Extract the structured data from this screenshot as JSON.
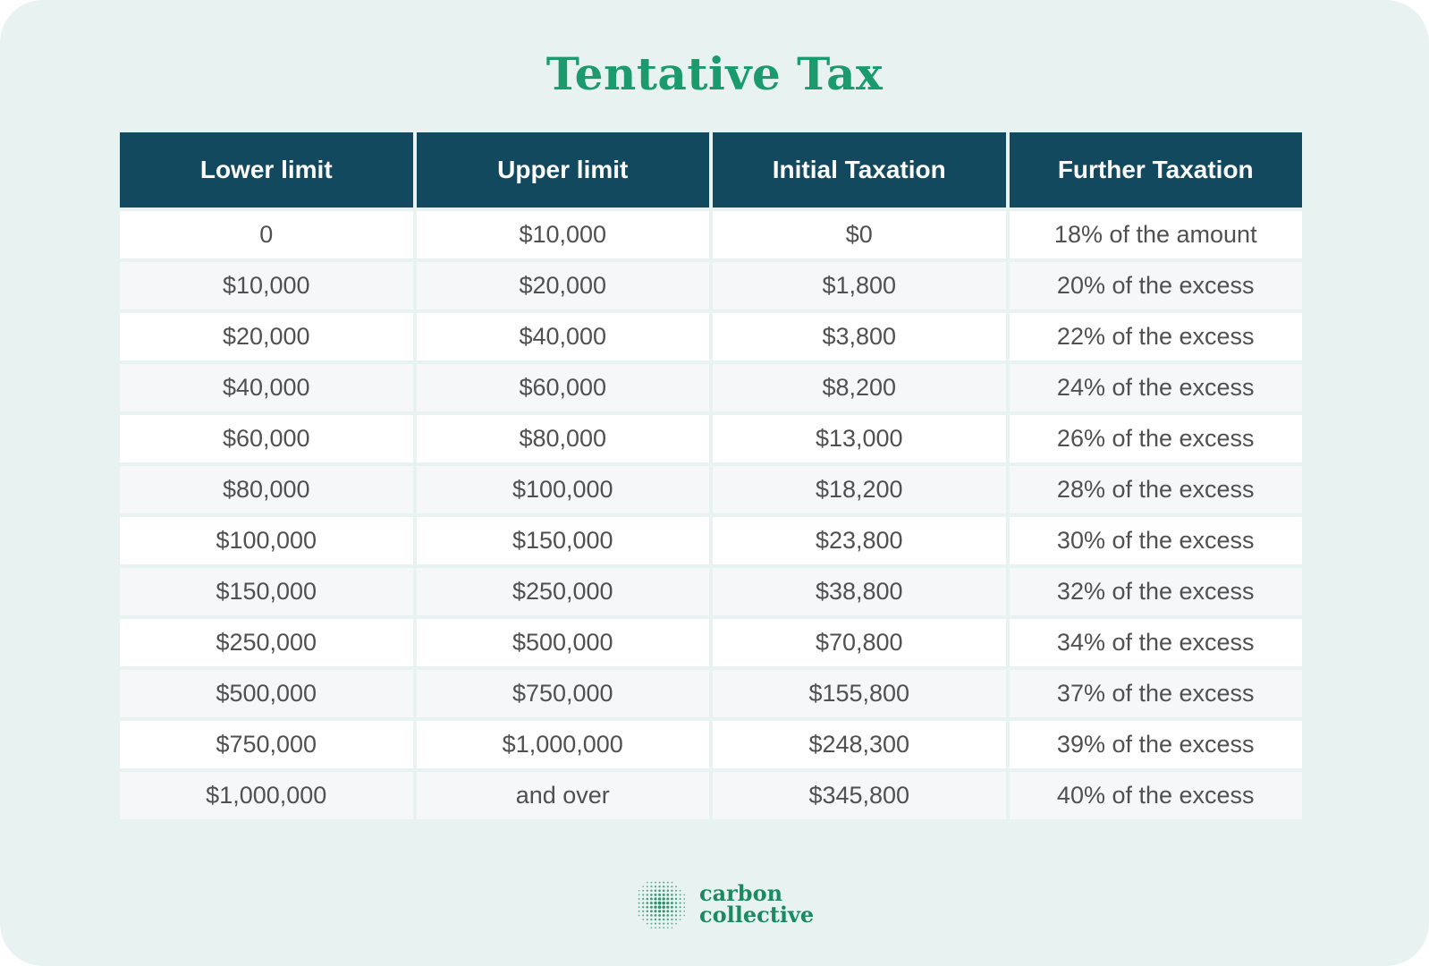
{
  "title": "Tentative Tax",
  "table": {
    "headers": [
      "Lower limit",
      "Upper limit",
      "Initial Taxation",
      "Further Taxation"
    ],
    "rows": [
      [
        "0",
        "$10,000",
        "$0",
        "18% of the amount"
      ],
      [
        "$10,000",
        "$20,000",
        "$1,800",
        "20% of the excess"
      ],
      [
        "$20,000",
        "$40,000",
        "$3,800",
        "22% of the excess"
      ],
      [
        "$40,000",
        "$60,000",
        "$8,200",
        "24% of the excess"
      ],
      [
        "$60,000",
        "$80,000",
        "$13,000",
        "26% of the excess"
      ],
      [
        "$80,000",
        "$100,000",
        "$18,200",
        "28% of the excess"
      ],
      [
        "$100,000",
        "$150,000",
        "$23,800",
        "30% of the excess"
      ],
      [
        "$150,000",
        "$250,000",
        "$38,800",
        "32% of the excess"
      ],
      [
        "$250,000",
        "$500,000",
        "$70,800",
        "34% of the excess"
      ],
      [
        "$500,000",
        "$750,000",
        "$155,800",
        "37% of the excess"
      ],
      [
        "$750,000",
        "$1,000,000",
        "$248,300",
        "39% of the excess"
      ],
      [
        "$1,000,000",
        "and over",
        "$345,800",
        "40% of the excess"
      ]
    ]
  },
  "logo": {
    "line1": "carbon",
    "line2": "collective",
    "icon": "dotted-sphere-icon"
  },
  "colors": {
    "title": "#1b9a6e",
    "header_bg": "#12495e",
    "background": "#e8f3f1",
    "cell_text": "#505050",
    "logo": "#1b8a62"
  }
}
